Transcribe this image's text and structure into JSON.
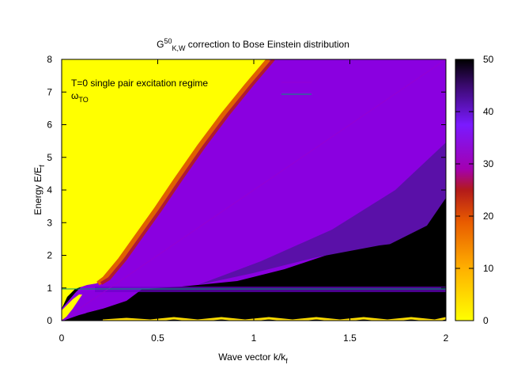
{
  "chart_data": {
    "type": "heatmap",
    "title": {
      "base": "G",
      "superscript": "50",
      "subscript": "K,W",
      "rest": " correction to Bose Einstein distribution"
    },
    "xlabel": "Wave vector k/k",
    "xlabel_subscript": "f",
    "ylabel": "Energy E/E",
    "ylabel_subscript": "f",
    "xlim": [
      0,
      2
    ],
    "ylim": [
      0,
      8
    ],
    "x_ticks": [
      "0",
      "0.5",
      "1",
      "1.5",
      "2"
    ],
    "y_ticks": [
      "0",
      "1",
      "2",
      "3",
      "4",
      "5",
      "6",
      "7",
      "8"
    ],
    "colorbar": {
      "range": [
        0,
        50
      ],
      "ticks": [
        "0",
        "10",
        "20",
        "30",
        "40",
        "50"
      ],
      "palette": "yellow-orange-red-purple-black"
    },
    "legend_position": "top-left",
    "series": [
      {
        "name": "T=0 single pair excitation regime",
        "color": "#9400d3",
        "style": "line",
        "description_points": [
          [
            0,
            0
          ],
          [
            2,
            8
          ]
        ]
      },
      {
        "name": "ω",
        "name_subscript": "TO",
        "color": "#009e73",
        "style": "line",
        "description_points": [
          [
            0,
            0.97
          ],
          [
            2,
            0.97
          ]
        ]
      }
    ]
  }
}
